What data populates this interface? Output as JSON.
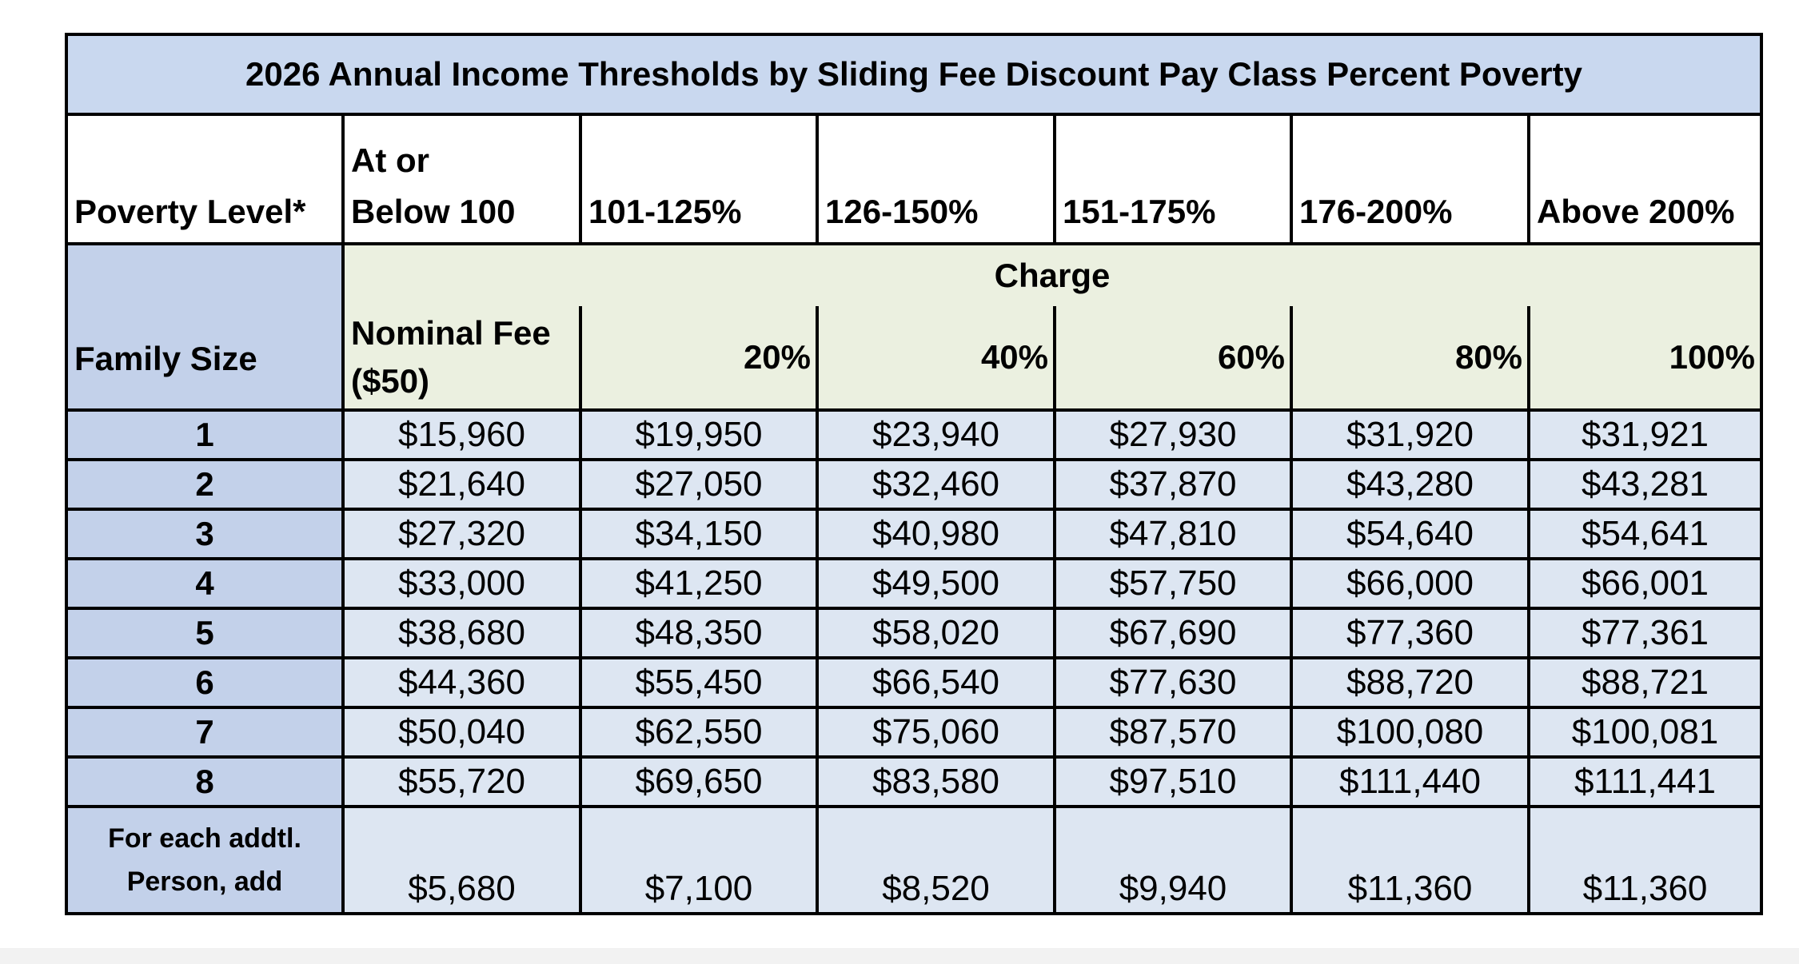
{
  "table": {
    "title": "2026 Annual Income Thresholds by Sliding Fee Discount Pay Class Percent Poverty",
    "poverty_label": "Poverty Level*",
    "poverty_levels": [
      "At or Below 100",
      "101-125%",
      "126-150%",
      "151-175%",
      "176-200%",
      "Above 200%"
    ],
    "family_size_label": "Family Size",
    "charge_label": "Charge",
    "charges": [
      "Nominal Fee ($50)",
      "20%",
      "40%",
      "60%",
      "80%",
      "100%"
    ],
    "rows": [
      {
        "size": "1",
        "values": [
          "$15,960",
          "$19,950",
          "$23,940",
          "$27,930",
          "$31,920",
          "$31,921"
        ]
      },
      {
        "size": "2",
        "values": [
          "$21,640",
          "$27,050",
          "$32,460",
          "$37,870",
          "$43,280",
          "$43,281"
        ]
      },
      {
        "size": "3",
        "values": [
          "$27,320",
          "$34,150",
          "$40,980",
          "$47,810",
          "$54,640",
          "$54,641"
        ]
      },
      {
        "size": "4",
        "values": [
          "$33,000",
          "$41,250",
          "$49,500",
          "$57,750",
          "$66,000",
          "$66,001"
        ]
      },
      {
        "size": "5",
        "values": [
          "$38,680",
          "$48,350",
          "$58,020",
          "$67,690",
          "$77,360",
          "$77,361"
        ]
      },
      {
        "size": "6",
        "values": [
          "$44,360",
          "$55,450",
          "$66,540",
          "$77,630",
          "$88,720",
          "$88,721"
        ]
      },
      {
        "size": "7",
        "values": [
          "$50,040",
          "$62,550",
          "$75,060",
          "$87,570",
          "$100,080",
          "$100,081"
        ]
      },
      {
        "size": "8",
        "values": [
          "$55,720",
          "$69,650",
          "$83,580",
          "$97,510",
          "$111,440",
          "$111,441"
        ]
      }
    ],
    "additional": {
      "label": "For each addtl. Person, add",
      "values": [
        "$5,680",
        "$7,100",
        "$8,520",
        "$9,940",
        "$11,360",
        "$11,360"
      ]
    }
  },
  "colors": {
    "title_bg": "#c9d8ef",
    "family_size_bg": "#c3d1ea",
    "charge_bg": "#ebf0e0",
    "value_bg": "#dde6f2",
    "border": "#000000"
  }
}
